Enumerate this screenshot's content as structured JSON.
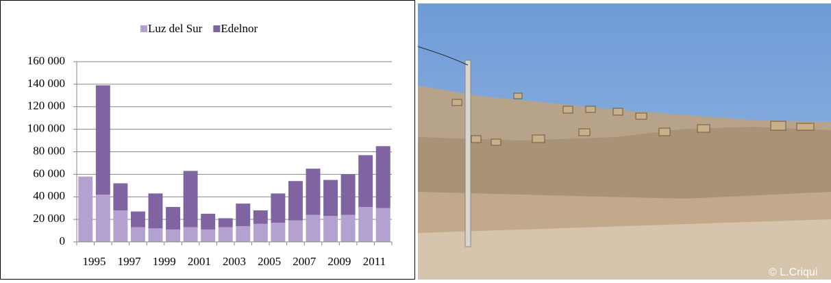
{
  "chart_data": {
    "type": "stacked_bar",
    "categories": [
      "1995",
      null,
      "1997",
      null,
      "1999",
      null,
      "2001",
      null,
      "2003",
      null,
      "2005",
      null,
      "2007",
      null,
      "2009",
      null,
      "2011",
      null
    ],
    "series": [
      {
        "name": "Luz del Sur",
        "color": "#b3a2d0",
        "values": [
          58000,
          42000,
          28000,
          13000,
          12000,
          11000,
          13000,
          11000,
          13000,
          14000,
          16000,
          17000,
          19000,
          24000,
          23000,
          24000,
          31000,
          30000
        ]
      },
      {
        "name": "Edelnor",
        "color": "#8064a2",
        "values": [
          0,
          97000,
          24000,
          14000,
          31000,
          20000,
          50000,
          14000,
          8000,
          20000,
          12000,
          26000,
          35000,
          41000,
          32000,
          36000,
          46000,
          55000
        ]
      }
    ],
    "ylim": [
      0,
      160000
    ],
    "yticks": [
      0,
      {
        "value": 20000,
        "label": "20 000"
      },
      {
        "value": 40000,
        "label": "40 000"
      },
      {
        "value": 60000,
        "label": "60 000"
      },
      {
        "value": 80000,
        "label": "80 000"
      },
      {
        "value": 100000,
        "label": "100 000"
      },
      {
        "value": 120000,
        "label": "120 000"
      },
      {
        "value": 140000,
        "label": "140 000"
      },
      {
        "value": 160000,
        "label": "160 000"
      }
    ],
    "grid": true,
    "legend": "top"
  },
  "photo": {
    "credit": "© L.Criqui"
  }
}
